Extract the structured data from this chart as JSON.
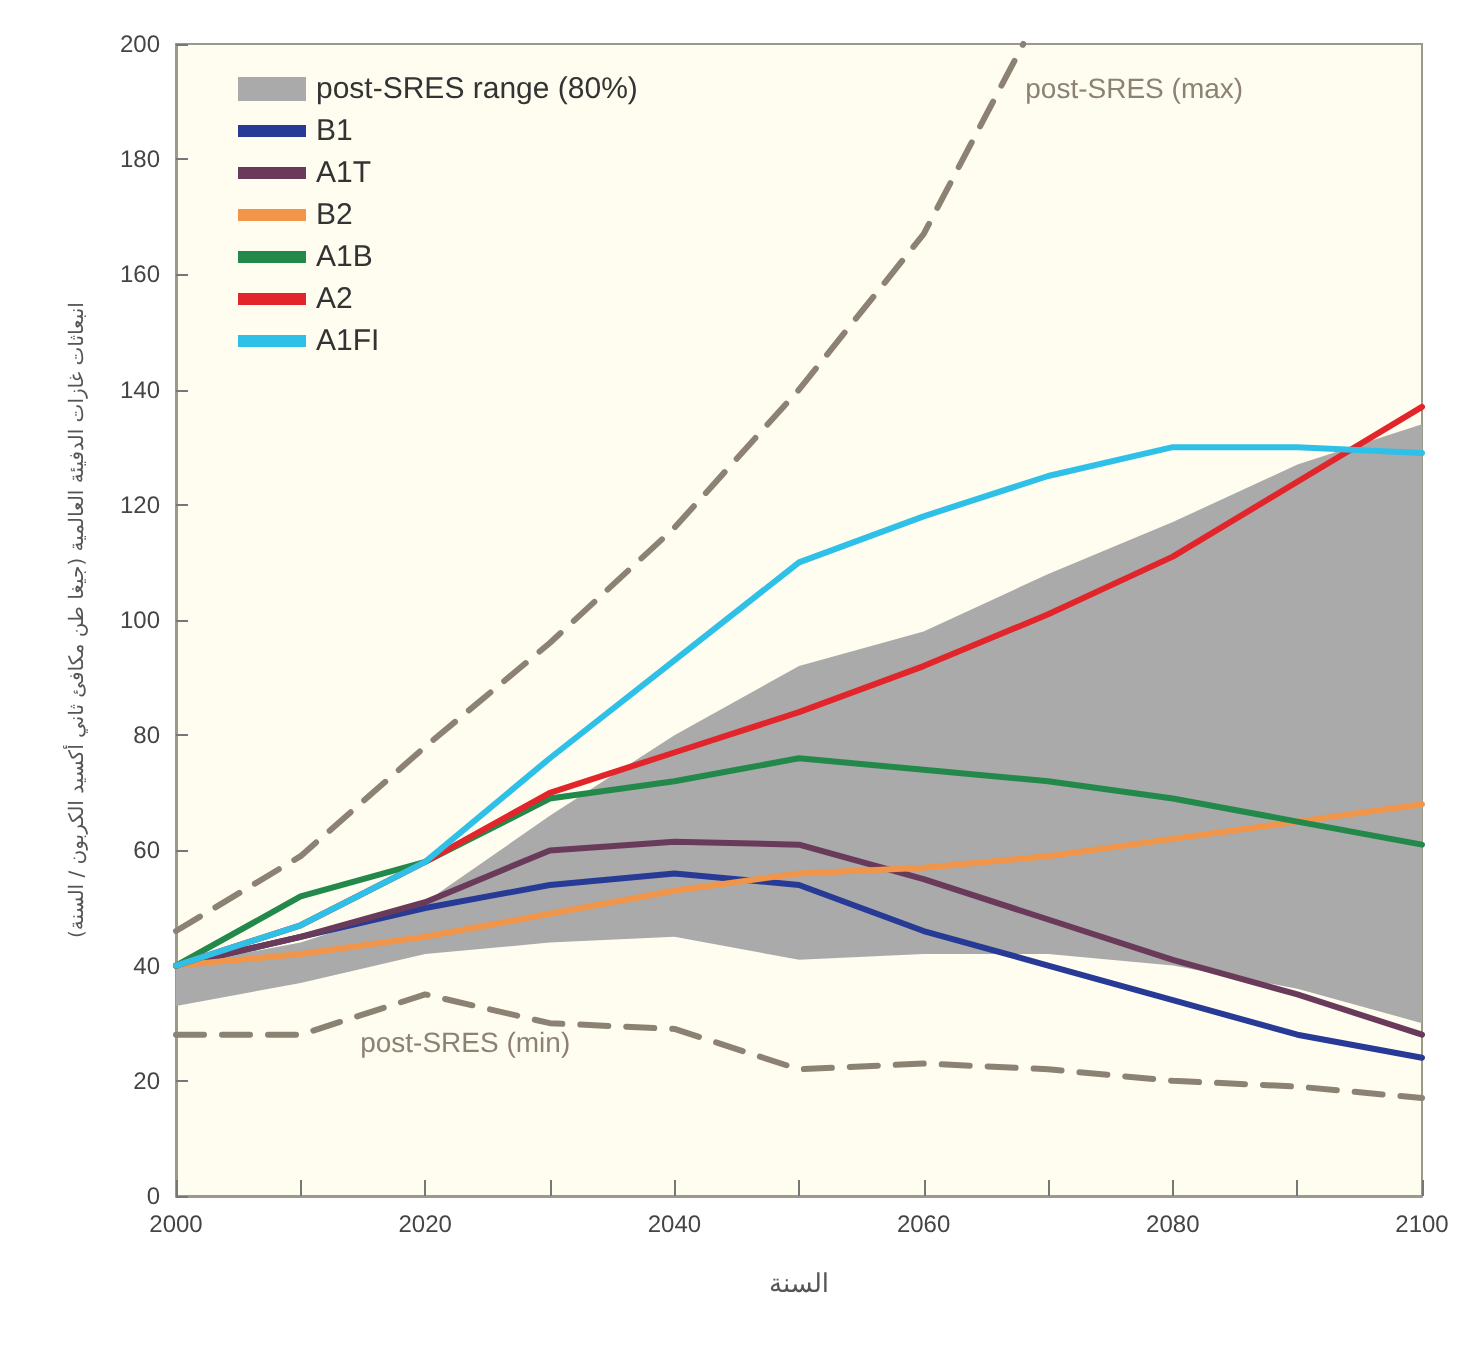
{
  "chart_data": {
    "type": "line",
    "xlabel": "السنة",
    "ylabel": "انبعاثات غازات الدفيئة العالمية (جيغا طن مكافئ ثاني أكسيد الكربون / السنة)",
    "x": [
      2000,
      2010,
      2020,
      2030,
      2040,
      2050,
      2060,
      2070,
      2080,
      2090,
      2100
    ],
    "series": [
      {
        "name": "post-SRES range (80%)",
        "type": "area",
        "color": "#aaaaaa",
        "values": [
          null,
          null,
          null,
          null,
          null,
          null,
          null,
          null,
          null,
          null,
          null
        ],
        "lower": [
          33,
          37,
          42,
          44,
          45,
          41,
          42,
          42,
          40,
          36,
          30
        ],
        "upper": [
          40,
          44,
          51,
          66,
          80,
          92,
          98,
          108,
          117,
          127,
          134
        ]
      },
      {
        "name": "post-SRES (max)",
        "type": "line",
        "color": "#8c8274",
        "line_style": "dashed",
        "x": [
          2000,
          2010,
          2020,
          2030,
          2040,
          2050,
          2060,
          2068
        ],
        "values": [
          46,
          59,
          78,
          96,
          116,
          140,
          167,
          200
        ]
      },
      {
        "name": "post-SRES (min)",
        "type": "line",
        "color": "#8c8274",
        "line_style": "dashed",
        "values": [
          28,
          28,
          35,
          30,
          29,
          22,
          23,
          22,
          20,
          19,
          17
        ]
      },
      {
        "name": "B1",
        "color": "#263a96",
        "values": [
          40,
          45,
          50,
          54,
          56,
          54,
          46,
          40,
          34,
          28,
          24
        ]
      },
      {
        "name": "A1T",
        "color": "#6a3a5a",
        "values": [
          40,
          45,
          51,
          60,
          61.5,
          61,
          55,
          48,
          41,
          35,
          28
        ]
      },
      {
        "name": "B2",
        "color": "#f0954a",
        "values": [
          40,
          42,
          45,
          49,
          53,
          56,
          57,
          59,
          62,
          65,
          68
        ]
      },
      {
        "name": "A1B",
        "color": "#22894a",
        "values": [
          40,
          52,
          58,
          69,
          72,
          76,
          74,
          72,
          69,
          65,
          61
        ]
      },
      {
        "name": "A2",
        "color": "#e2252b",
        "values": [
          40,
          47,
          58,
          70,
          77,
          84,
          92,
          101,
          111,
          124,
          137
        ]
      },
      {
        "name": "A1FI",
        "color": "#2fc0e8",
        "values": [
          40,
          47,
          58,
          76,
          93,
          110,
          118,
          125,
          130,
          130,
          129
        ]
      }
    ],
    "xlim": [
      2000,
      2100
    ],
    "xticks": [
      2000,
      {
        "value": 2010,
        "label": null
      },
      2020,
      {
        "value": 2030,
        "label": null
      },
      2040,
      {
        "value": 2050,
        "label": null
      },
      2060,
      {
        "value": 2070,
        "label": null
      },
      2080,
      {
        "value": 2090,
        "label": null
      },
      2100
    ],
    "ylim": [
      0,
      200
    ],
    "yticks": [
      0,
      20,
      40,
      60,
      80,
      100,
      120,
      140,
      160,
      180,
      200
    ],
    "grid": false,
    "legend": "top left",
    "marker": "none",
    "line_style": "solid"
  }
}
